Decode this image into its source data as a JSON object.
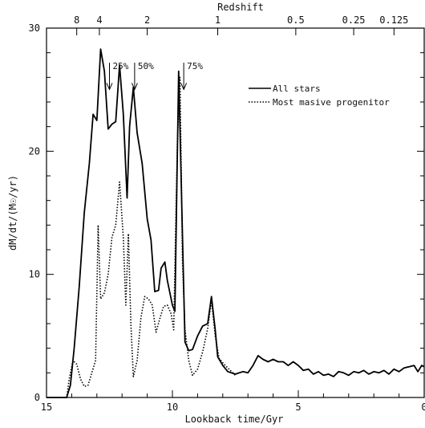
{
  "chart_data": {
    "type": "line",
    "xlabel": "Lookback time/Gyr",
    "ylabel": "dM/dt/(M☉/yr)",
    "top_axis_label": "Redshift",
    "xlim": [
      15,
      0
    ],
    "ylim": [
      0,
      30
    ],
    "x_ticks": [
      15,
      10,
      5,
      0
    ],
    "y_ticks": [
      0,
      10,
      20,
      30
    ],
    "x_tick_labels": [
      "15",
      "10",
      "5",
      "0"
    ],
    "y_tick_labels": [
      "0",
      "10",
      "20",
      "30"
    ],
    "top_ticks": [
      {
        "label": "8",
        "lookback": 13.8
      },
      {
        "label": "4",
        "lookback": 12.9
      },
      {
        "label": "2",
        "lookback": 11.0
      },
      {
        "label": "1",
        "lookback": 8.2
      },
      {
        "label": "0.5",
        "lookback": 5.1
      },
      {
        "label": "0.25",
        "lookback": 2.8
      },
      {
        "label": "0.125",
        "lookback": 1.2
      }
    ],
    "grid": false,
    "legend_position": "top-right",
    "series": [
      {
        "name": "All stars",
        "style": "solid",
        "color": "#000000",
        "points": [
          [
            15,
            0
          ],
          [
            14.2,
            0
          ],
          [
            14.05,
            1
          ],
          [
            13.9,
            4
          ],
          [
            13.7,
            9
          ],
          [
            13.5,
            15
          ],
          [
            13.3,
            19
          ],
          [
            13.15,
            23
          ],
          [
            13.0,
            22.5
          ],
          [
            12.85,
            28.3
          ],
          [
            12.7,
            26.5
          ],
          [
            12.55,
            21.8
          ],
          [
            12.4,
            22.2
          ],
          [
            12.25,
            22.4
          ],
          [
            12.1,
            27
          ],
          [
            11.95,
            23
          ],
          [
            11.8,
            16.2
          ],
          [
            11.7,
            22
          ],
          [
            11.55,
            25.2
          ],
          [
            11.4,
            21.5
          ],
          [
            11.2,
            19
          ],
          [
            11.0,
            14.5
          ],
          [
            10.85,
            12.8
          ],
          [
            10.7,
            8.6
          ],
          [
            10.55,
            8.7
          ],
          [
            10.45,
            10.5
          ],
          [
            10.3,
            11
          ],
          [
            10.2,
            9.5
          ],
          [
            10.0,
            7.5
          ],
          [
            9.9,
            7
          ],
          [
            9.75,
            26.5
          ],
          [
            9.6,
            13
          ],
          [
            9.5,
            4.5
          ],
          [
            9.35,
            3.8
          ],
          [
            9.2,
            3.9
          ],
          [
            9.0,
            5
          ],
          [
            8.8,
            5.8
          ],
          [
            8.6,
            6
          ],
          [
            8.45,
            8.2
          ],
          [
            8.3,
            5.5
          ],
          [
            8.2,
            3.3
          ],
          [
            8.0,
            2.6
          ],
          [
            7.8,
            2.1
          ],
          [
            7.5,
            1.9
          ],
          [
            7.2,
            2.1
          ],
          [
            7.0,
            2
          ],
          [
            6.8,
            2.6
          ],
          [
            6.6,
            3.4
          ],
          [
            6.4,
            3.1
          ],
          [
            6.2,
            2.9
          ],
          [
            6.0,
            3.1
          ],
          [
            5.8,
            2.9
          ],
          [
            5.6,
            2.9
          ],
          [
            5.4,
            2.6
          ],
          [
            5.2,
            2.9
          ],
          [
            5.0,
            2.6
          ],
          [
            4.8,
            2.2
          ],
          [
            4.6,
            2.3
          ],
          [
            4.4,
            1.9
          ],
          [
            4.2,
            2.1
          ],
          [
            4.0,
            1.8
          ],
          [
            3.8,
            1.9
          ],
          [
            3.6,
            1.7
          ],
          [
            3.4,
            2.1
          ],
          [
            3.2,
            2.0
          ],
          [
            3.0,
            1.8
          ],
          [
            2.8,
            2.1
          ],
          [
            2.6,
            2.0
          ],
          [
            2.4,
            2.2
          ],
          [
            2.2,
            1.9
          ],
          [
            2.0,
            2.1
          ],
          [
            1.8,
            2.0
          ],
          [
            1.6,
            2.2
          ],
          [
            1.4,
            1.9
          ],
          [
            1.2,
            2.3
          ],
          [
            1.0,
            2.1
          ],
          [
            0.8,
            2.4
          ],
          [
            0.6,
            2.5
          ],
          [
            0.4,
            2.6
          ],
          [
            0.25,
            2.1
          ],
          [
            0.1,
            2.6
          ],
          [
            0,
            2.5
          ]
        ]
      },
      {
        "name": "Most masive progenitor",
        "style": "dotted",
        "color": "#000000",
        "points": [
          [
            15,
            0
          ],
          [
            14.2,
            0
          ],
          [
            14.1,
            1.5
          ],
          [
            13.95,
            3
          ],
          [
            13.8,
            2.7
          ],
          [
            13.65,
            1.5
          ],
          [
            13.5,
            0.9
          ],
          [
            13.35,
            1
          ],
          [
            13.2,
            2
          ],
          [
            13.05,
            3
          ],
          [
            12.95,
            14
          ],
          [
            12.85,
            8
          ],
          [
            12.7,
            8.5
          ],
          [
            12.55,
            10
          ],
          [
            12.4,
            13
          ],
          [
            12.25,
            14
          ],
          [
            12.1,
            17.5
          ],
          [
            11.95,
            13
          ],
          [
            11.85,
            7.5
          ],
          [
            11.75,
            13.3
          ],
          [
            11.65,
            6
          ],
          [
            11.55,
            1.7
          ],
          [
            11.4,
            3
          ],
          [
            11.25,
            6.5
          ],
          [
            11.1,
            8.2
          ],
          [
            10.95,
            8
          ],
          [
            10.8,
            7.5
          ],
          [
            10.65,
            5.3
          ],
          [
            10.5,
            6.4
          ],
          [
            10.35,
            7.4
          ],
          [
            10.2,
            7.5
          ],
          [
            10.05,
            6.8
          ],
          [
            9.95,
            5.5
          ],
          [
            9.8,
            21
          ],
          [
            9.7,
            26
          ],
          [
            9.6,
            11
          ],
          [
            9.5,
            5.5
          ],
          [
            9.35,
            3
          ],
          [
            9.2,
            1.8
          ],
          [
            9.0,
            2.3
          ],
          [
            8.8,
            3.7
          ],
          [
            8.6,
            5.6
          ],
          [
            8.45,
            7.9
          ],
          [
            8.3,
            5
          ],
          [
            8.15,
            3.2
          ],
          [
            7.95,
            2.7
          ],
          [
            7.75,
            2.3
          ],
          [
            7.5,
            1.8
          ]
        ]
      }
    ],
    "annotations": [
      {
        "label": "25%",
        "x": 12.5,
        "y": 26.8,
        "arrow_to_y": 25.8
      },
      {
        "label": "50%",
        "x": 11.5,
        "y": 26.8,
        "arrow_to_y": 25.8
      },
      {
        "label": "75%",
        "x": 9.55,
        "y": 26.8,
        "arrow_to_y": 25.8
      }
    ]
  }
}
